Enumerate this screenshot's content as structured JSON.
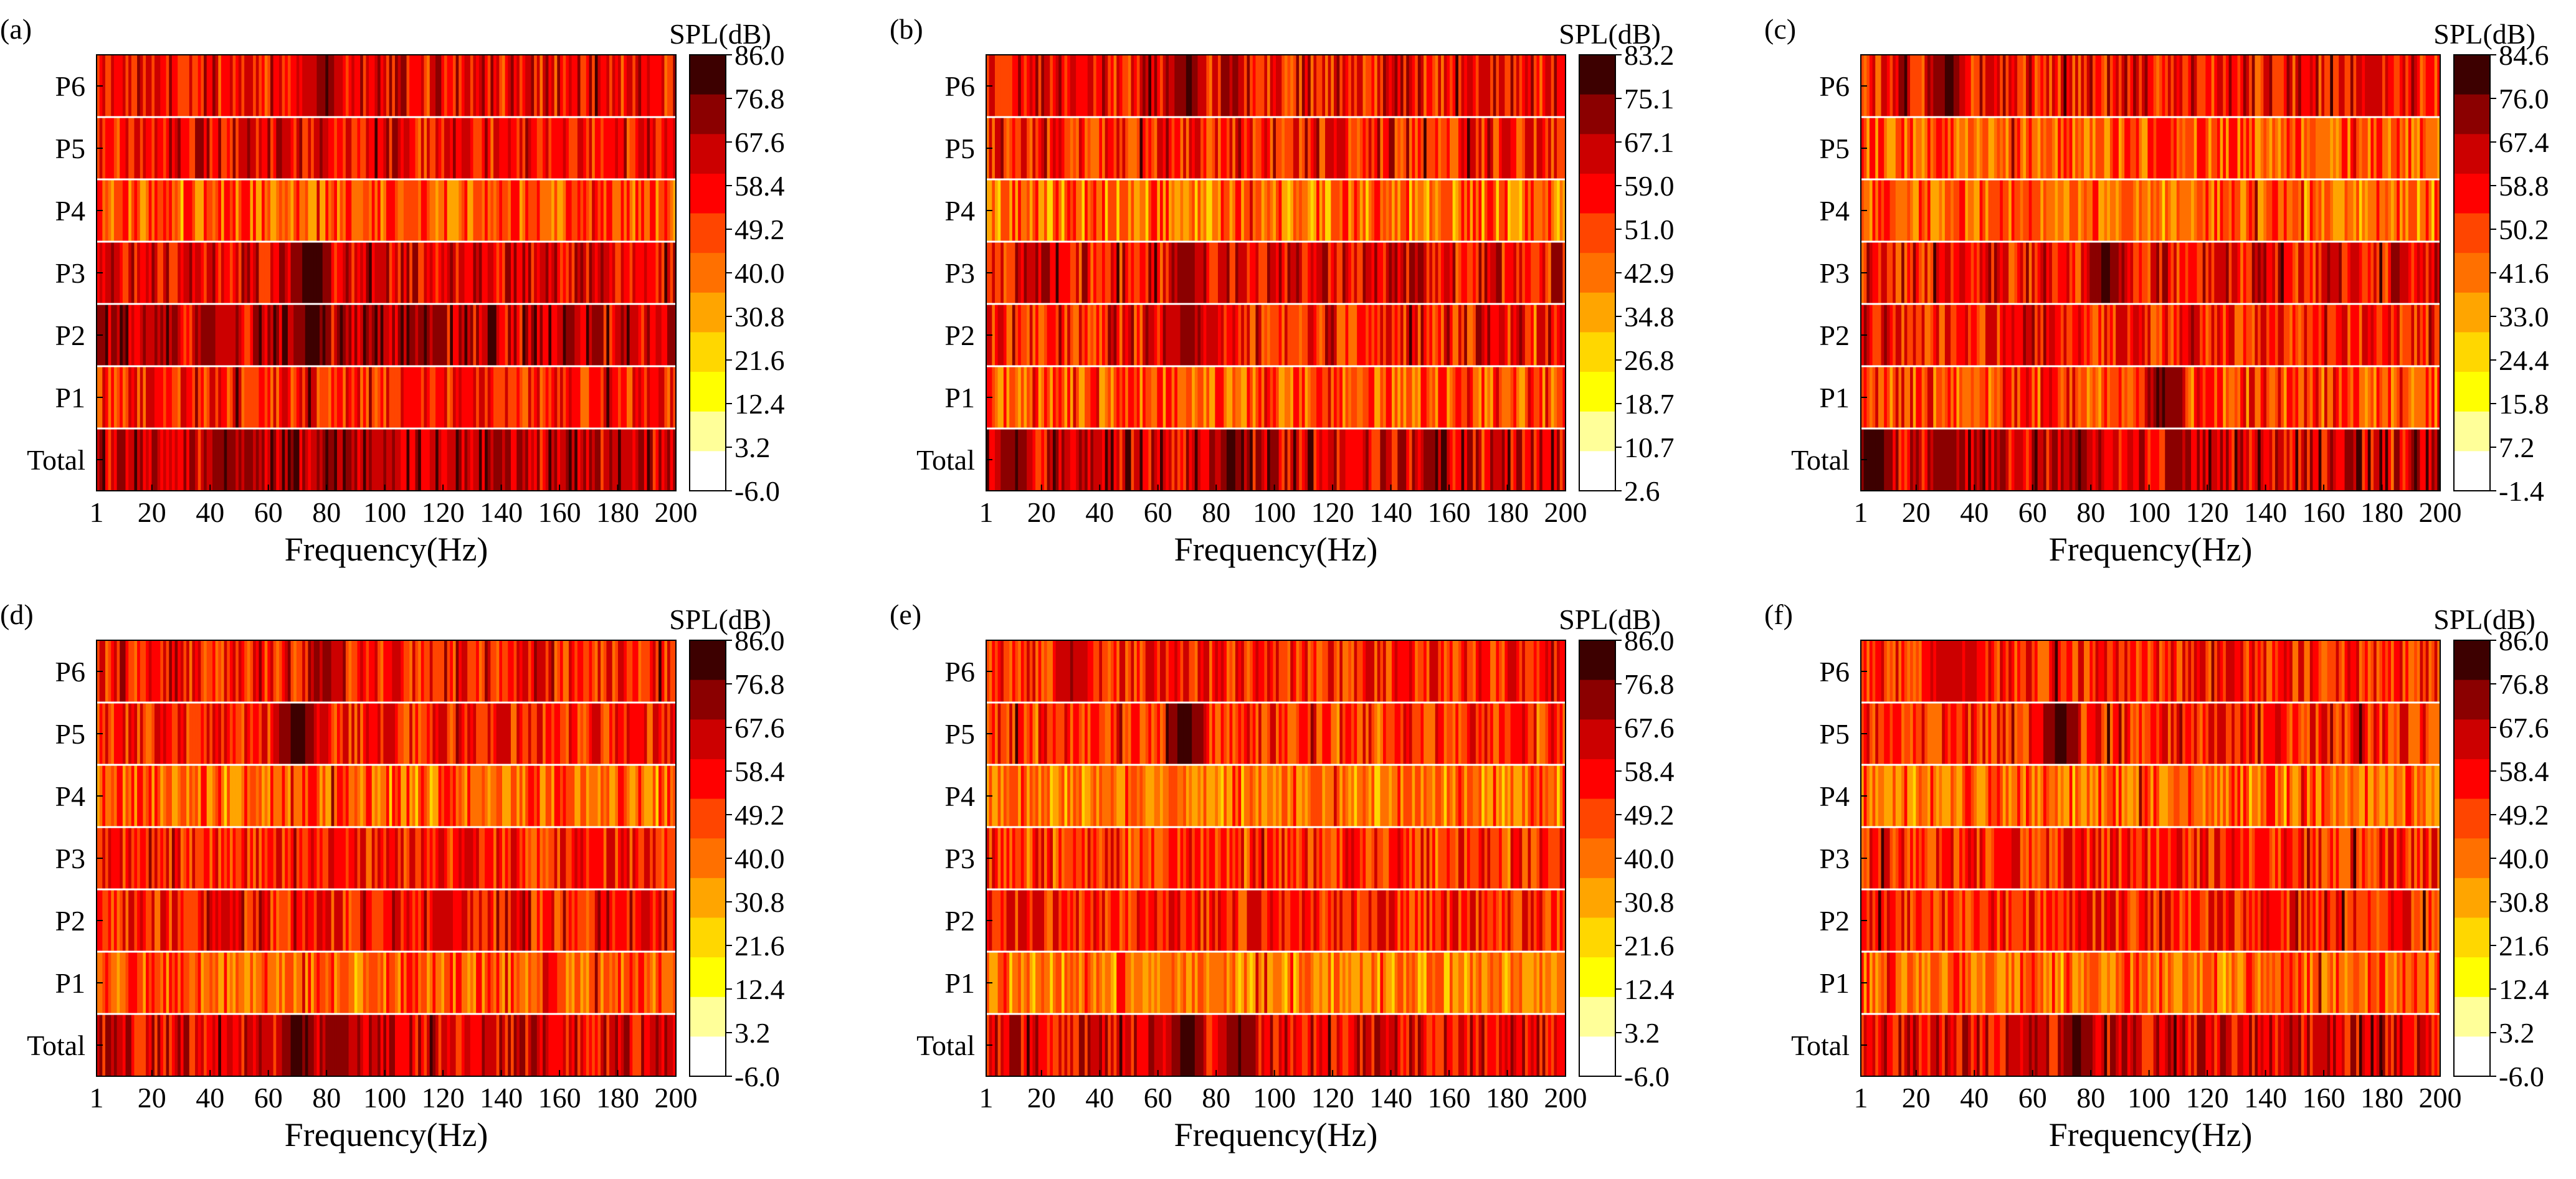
{
  "figure": {
    "description": "Six heatmaps of sound pressure level vs frequency at measuring points"
  },
  "palette": [
    "#ffffff",
    "#ffff99",
    "#ffff00",
    "#ffd700",
    "#ffa500",
    "#ff7000",
    "#ff4500",
    "#ff0000",
    "#cc0000",
    "#8b0000",
    "#3d0000"
  ],
  "chart_data": [
    {
      "type": "heatmap",
      "panel_label": "(a)",
      "colorbar_title": "SPL(dB)",
      "colorbar_ticks": [
        "86.0",
        "76.8",
        "67.6",
        "58.4",
        "49.2",
        "40.0",
        "30.8",
        "21.6",
        "12.4",
        "3.2",
        "-6.0"
      ],
      "zlim": [
        -6.0,
        86.0
      ],
      "rows": [
        "P6",
        "P5",
        "P4",
        "P3",
        "P2",
        "P1",
        "Total"
      ],
      "xlabel": "Frequency(Hz)",
      "xticks": [
        "1",
        "20",
        "40",
        "60",
        "80",
        "100",
        "120",
        "140",
        "160",
        "180",
        "200"
      ],
      "xlim": [
        1,
        200
      ],
      "row_base_spl": [
        58,
        57,
        46,
        60,
        66,
        53,
        66
      ],
      "hotspots": [
        {
          "row": "P6",
          "freq": 80,
          "spl": 76
        },
        {
          "row": "P3",
          "freq": 75,
          "spl": 84
        },
        {
          "row": "P2",
          "freq": 75,
          "spl": 86
        },
        {
          "row": "P2",
          "freq": 40,
          "spl": 76
        },
        {
          "row": "Total",
          "freq": 45,
          "spl": 78
        },
        {
          "row": "Total",
          "freq": 80,
          "spl": 76
        }
      ],
      "seed": 11
    },
    {
      "type": "heatmap",
      "panel_label": "(b)",
      "colorbar_title": "SPL(dB)",
      "colorbar_ticks": [
        "83.2",
        "75.1",
        "67.1",
        "59.0",
        "51.0",
        "42.9",
        "34.8",
        "26.8",
        "18.7",
        "10.7",
        "2.6"
      ],
      "zlim": [
        2.6,
        83.2
      ],
      "rows": [
        "P6",
        "P5",
        "P4",
        "P3",
        "P2",
        "P1",
        "Total"
      ],
      "xlabel": "Frequency(Hz)",
      "xticks": [
        "1",
        "20",
        "40",
        "60",
        "80",
        "100",
        "120",
        "140",
        "160",
        "180",
        "200"
      ],
      "xlim": [
        1,
        200
      ],
      "row_base_spl": [
        60,
        55,
        44,
        60,
        56,
        48,
        64
      ],
      "hotspots": [
        {
          "row": "P6",
          "freq": 70,
          "spl": 76
        },
        {
          "row": "P3",
          "freq": 70,
          "spl": 74
        },
        {
          "row": "P2",
          "freq": 70,
          "spl": 74
        },
        {
          "row": "Total",
          "freq": 10,
          "spl": 78
        },
        {
          "row": "Total",
          "freq": 85,
          "spl": 78
        }
      ],
      "seed": 23
    },
    {
      "type": "heatmap",
      "panel_label": "(c)",
      "colorbar_title": "SPL(dB)",
      "colorbar_ticks": [
        "84.6",
        "76.0",
        "67.4",
        "58.8",
        "50.2",
        "41.6",
        "33.0",
        "24.4",
        "15.8",
        "7.2",
        "-1.4"
      ],
      "zlim": [
        -1.4,
        84.6
      ],
      "rows": [
        "P6",
        "P5",
        "P4",
        "P3",
        "P2",
        "P1",
        "Total"
      ],
      "xlabel": "Frequency(Hz)",
      "xticks": [
        "1",
        "20",
        "40",
        "60",
        "80",
        "100",
        "120",
        "140",
        "160",
        "180",
        "200"
      ],
      "xlim": [
        1,
        200
      ],
      "row_base_spl": [
        56,
        46,
        44,
        58,
        56,
        50,
        64
      ],
      "hotspots": [
        {
          "row": "P6",
          "freq": 30,
          "spl": 80
        },
        {
          "row": "P3",
          "freq": 85,
          "spl": 80
        },
        {
          "row": "P1",
          "freq": 105,
          "spl": 80
        },
        {
          "row": "Total",
          "freq": 5,
          "spl": 82
        },
        {
          "row": "Total",
          "freq": 30,
          "spl": 76
        }
      ],
      "seed": 37
    },
    {
      "type": "heatmap",
      "panel_label": "(d)",
      "colorbar_title": "SPL(dB)",
      "colorbar_ticks": [
        "86.0",
        "76.8",
        "67.6",
        "58.4",
        "49.2",
        "40.0",
        "30.8",
        "21.6",
        "12.4",
        "3.2",
        "-6.0"
      ],
      "zlim": [
        -6.0,
        86.0
      ],
      "rows": [
        "P6",
        "P5",
        "P4",
        "P3",
        "P2",
        "P1",
        "Total"
      ],
      "xlabel": "Frequency(Hz)",
      "xticks": [
        "1",
        "20",
        "40",
        "60",
        "80",
        "100",
        "120",
        "140",
        "160",
        "180",
        "200"
      ],
      "xlim": [
        1,
        200
      ],
      "row_base_spl": [
        56,
        54,
        42,
        54,
        56,
        44,
        62
      ],
      "hotspots": [
        {
          "row": "P5",
          "freq": 70,
          "spl": 84
        },
        {
          "row": "P6",
          "freq": 80,
          "spl": 74
        },
        {
          "row": "Total",
          "freq": 70,
          "spl": 82
        },
        {
          "row": "Total",
          "freq": 85,
          "spl": 76
        }
      ],
      "seed": 41
    },
    {
      "type": "heatmap",
      "panel_label": "(e)",
      "colorbar_title": "SPL(dB)",
      "colorbar_ticks": [
        "86.0",
        "76.8",
        "67.6",
        "58.4",
        "49.2",
        "40.0",
        "30.8",
        "21.6",
        "12.4",
        "3.2",
        "-6.0"
      ],
      "zlim": [
        -6.0,
        86.0
      ],
      "rows": [
        "P6",
        "P5",
        "P4",
        "P3",
        "P2",
        "P1",
        "Total"
      ],
      "xlabel": "Frequency(Hz)",
      "xticks": [
        "1",
        "20",
        "40",
        "60",
        "80",
        "100",
        "120",
        "140",
        "160",
        "180",
        "200"
      ],
      "xlim": [
        1,
        200
      ],
      "row_base_spl": [
        54,
        50,
        40,
        50,
        54,
        40,
        60
      ],
      "hotspots": [
        {
          "row": "P5",
          "freq": 70,
          "spl": 84
        },
        {
          "row": "P6",
          "freq": 30,
          "spl": 72
        },
        {
          "row": "Total",
          "freq": 70,
          "spl": 82
        },
        {
          "row": "Total",
          "freq": 88,
          "spl": 80
        }
      ],
      "seed": 53
    },
    {
      "type": "heatmap",
      "panel_label": "(f)",
      "colorbar_title": "SPL(dB)",
      "colorbar_ticks": [
        "86.0",
        "76.8",
        "67.6",
        "58.4",
        "49.2",
        "40.0",
        "30.8",
        "21.6",
        "12.4",
        "3.2",
        "-6.0"
      ],
      "zlim": [
        -6.0,
        86.0
      ],
      "rows": [
        "P6",
        "P5",
        "P4",
        "P3",
        "P2",
        "P1",
        "Total"
      ],
      "xlabel": "Frequency(Hz)",
      "xticks": [
        "1",
        "20",
        "40",
        "60",
        "80",
        "100",
        "120",
        "140",
        "160",
        "180",
        "200"
      ],
      "xlim": [
        1,
        200
      ],
      "row_base_spl": [
        54,
        52,
        42,
        52,
        54,
        42,
        60
      ],
      "hotspots": [
        {
          "row": "P5",
          "freq": 70,
          "spl": 82
        },
        {
          "row": "P6",
          "freq": 30,
          "spl": 70
        },
        {
          "row": "Total",
          "freq": 75,
          "spl": 80
        }
      ],
      "seed": 67
    }
  ]
}
